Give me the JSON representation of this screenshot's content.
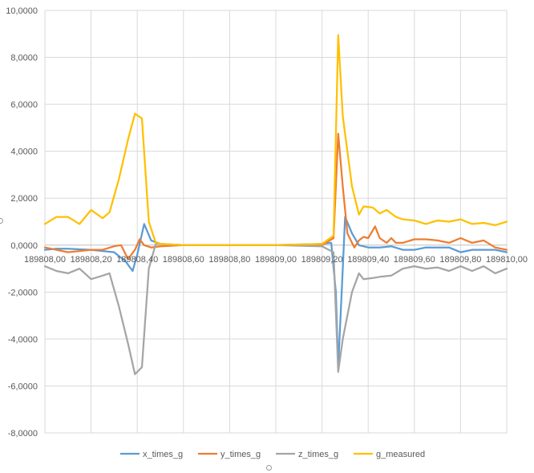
{
  "chart_data": {
    "type": "line",
    "title": "",
    "xlabel": "",
    "ylabel": "",
    "xlim": [
      189808.0,
      189810.0
    ],
    "ylim": [
      -8,
      10
    ],
    "x_ticks": [
      189808.0,
      189808.2,
      189808.4,
      189808.6,
      189808.8,
      189809.0,
      189809.2,
      189809.4,
      189809.6,
      189809.8,
      189810.0
    ],
    "x_tick_labels": [
      "189808,00",
      "189808,20",
      "189808,40",
      "189808,60",
      "189808,80",
      "189809,00",
      "189809,20",
      "189809,40",
      "189809,60",
      "189809,80",
      "189810,00"
    ],
    "y_ticks": [
      -8,
      -6,
      -4,
      -2,
      0,
      2,
      4,
      6,
      8,
      10
    ],
    "y_tick_labels": [
      "-8,0000",
      "-6,0000",
      "-4,0000",
      "-2,0000",
      "0,0000",
      "2,0000",
      "4,0000",
      "6,0000",
      "8,0000",
      "10,0000"
    ],
    "grid": "vertical and horizontal",
    "legend_position": "bottom",
    "series": [
      {
        "name": "x_times_g",
        "color": "#5B9BD5",
        "points": [
          [
            189808.0,
            -0.2
          ],
          [
            189808.05,
            -0.15
          ],
          [
            189808.1,
            -0.15
          ],
          [
            189808.15,
            -0.18
          ],
          [
            189808.2,
            -0.2
          ],
          [
            189808.25,
            -0.25
          ],
          [
            189808.3,
            -0.3
          ],
          [
            189808.35,
            -0.7
          ],
          [
            189808.38,
            -1.1
          ],
          [
            189808.4,
            -0.4
          ],
          [
            189808.43,
            0.9
          ],
          [
            189808.46,
            0.2
          ],
          [
            189808.5,
            0.05
          ],
          [
            189808.6,
            0.0
          ],
          [
            189808.8,
            0.0
          ],
          [
            189809.0,
            0.0
          ],
          [
            189809.2,
            0.05
          ],
          [
            189809.24,
            0.1
          ],
          [
            189809.26,
            -2.0
          ],
          [
            189809.27,
            -5.2
          ],
          [
            189809.29,
            -1.0
          ],
          [
            189809.3,
            1.2
          ],
          [
            189809.33,
            0.5
          ],
          [
            189809.36,
            0.0
          ],
          [
            189809.4,
            -0.1
          ],
          [
            189809.45,
            -0.1
          ],
          [
            189809.5,
            -0.05
          ],
          [
            189809.55,
            -0.2
          ],
          [
            189809.6,
            -0.2
          ],
          [
            189809.65,
            -0.1
          ],
          [
            189809.7,
            -0.1
          ],
          [
            189809.75,
            -0.1
          ],
          [
            189809.8,
            -0.3
          ],
          [
            189809.85,
            -0.2
          ],
          [
            189809.9,
            -0.2
          ],
          [
            189809.95,
            -0.2
          ],
          [
            189810.0,
            -0.3
          ]
        ]
      },
      {
        "name": "y_times_g",
        "color": "#ED7D31",
        "points": [
          [
            189808.0,
            -0.1
          ],
          [
            189808.05,
            -0.2
          ],
          [
            189808.1,
            -0.3
          ],
          [
            189808.15,
            -0.25
          ],
          [
            189808.2,
            -0.2
          ],
          [
            189808.25,
            -0.2
          ],
          [
            189808.3,
            -0.05
          ],
          [
            189808.33,
            0.0
          ],
          [
            189808.36,
            -0.6
          ],
          [
            189808.39,
            -0.2
          ],
          [
            189808.41,
            0.25
          ],
          [
            189808.43,
            0.0
          ],
          [
            189808.46,
            -0.1
          ],
          [
            189808.5,
            -0.05
          ],
          [
            189808.6,
            0.0
          ],
          [
            189808.8,
            0.0
          ],
          [
            189809.0,
            0.0
          ],
          [
            189809.2,
            0.0
          ],
          [
            189809.25,
            0.3
          ],
          [
            189809.27,
            4.75
          ],
          [
            189809.29,
            2.5
          ],
          [
            189809.31,
            0.5
          ],
          [
            189809.34,
            -0.1
          ],
          [
            189809.36,
            0.2
          ],
          [
            189809.38,
            0.35
          ],
          [
            189809.4,
            0.3
          ],
          [
            189809.43,
            0.8
          ],
          [
            189809.45,
            0.3
          ],
          [
            189809.48,
            0.1
          ],
          [
            189809.5,
            0.3
          ],
          [
            189809.52,
            0.1
          ],
          [
            189809.55,
            0.1
          ],
          [
            189809.6,
            0.25
          ],
          [
            189809.65,
            0.25
          ],
          [
            189809.7,
            0.2
          ],
          [
            189809.75,
            0.1
          ],
          [
            189809.8,
            0.3
          ],
          [
            189809.85,
            0.1
          ],
          [
            189809.9,
            0.2
          ],
          [
            189809.95,
            -0.1
          ],
          [
            189810.0,
            -0.2
          ]
        ]
      },
      {
        "name": "z_times_g",
        "color": "#A5A5A5",
        "points": [
          [
            189808.0,
            -0.9
          ],
          [
            189808.05,
            -1.1
          ],
          [
            189808.1,
            -1.2
          ],
          [
            189808.15,
            -1.0
          ],
          [
            189808.2,
            -1.45
          ],
          [
            189808.25,
            -1.3
          ],
          [
            189808.28,
            -1.2
          ],
          [
            189808.32,
            -2.6
          ],
          [
            189808.36,
            -4.2
          ],
          [
            189808.39,
            -5.5
          ],
          [
            189808.42,
            -5.2
          ],
          [
            189808.45,
            -1.0
          ],
          [
            189808.48,
            0.05
          ],
          [
            189808.5,
            0.05
          ],
          [
            189808.6,
            0.0
          ],
          [
            189808.8,
            0.0
          ],
          [
            189809.0,
            0.0
          ],
          [
            189809.2,
            -0.05
          ],
          [
            189809.25,
            -0.3
          ],
          [
            189809.27,
            -5.4
          ],
          [
            189809.29,
            -4.0
          ],
          [
            189809.33,
            -2.0
          ],
          [
            189809.36,
            -1.2
          ],
          [
            189809.38,
            -1.45
          ],
          [
            189809.42,
            -1.4
          ],
          [
            189809.45,
            -1.35
          ],
          [
            189809.5,
            -1.3
          ],
          [
            189809.55,
            -1.0
          ],
          [
            189809.6,
            -0.9
          ],
          [
            189809.65,
            -1.0
          ],
          [
            189809.7,
            -0.95
          ],
          [
            189809.75,
            -1.1
          ],
          [
            189809.8,
            -0.9
          ],
          [
            189809.85,
            -1.1
          ],
          [
            189809.9,
            -0.9
          ],
          [
            189809.95,
            -1.2
          ],
          [
            189810.0,
            -1.0
          ]
        ]
      },
      {
        "name": "g_measured",
        "color": "#FFC000",
        "points": [
          [
            189808.0,
            0.9
          ],
          [
            189808.05,
            1.2
          ],
          [
            189808.1,
            1.2
          ],
          [
            189808.15,
            0.9
          ],
          [
            189808.2,
            1.5
          ],
          [
            189808.25,
            1.15
          ],
          [
            189808.28,
            1.4
          ],
          [
            189808.32,
            2.8
          ],
          [
            189808.36,
            4.5
          ],
          [
            189808.39,
            5.6
          ],
          [
            189808.42,
            5.4
          ],
          [
            189808.45,
            1.0
          ],
          [
            189808.48,
            0.1
          ],
          [
            189808.5,
            0.05
          ],
          [
            189808.6,
            0.0
          ],
          [
            189808.8,
            0.0
          ],
          [
            189809.0,
            0.0
          ],
          [
            189809.2,
            0.05
          ],
          [
            189809.25,
            0.4
          ],
          [
            189809.27,
            8.95
          ],
          [
            189809.29,
            5.5
          ],
          [
            189809.33,
            2.5
          ],
          [
            189809.36,
            1.3
          ],
          [
            189809.38,
            1.65
          ],
          [
            189809.42,
            1.6
          ],
          [
            189809.45,
            1.35
          ],
          [
            189809.48,
            1.5
          ],
          [
            189809.52,
            1.2
          ],
          [
            189809.55,
            1.1
          ],
          [
            189809.6,
            1.05
          ],
          [
            189809.65,
            0.9
          ],
          [
            189809.7,
            1.05
          ],
          [
            189809.75,
            1.0
          ],
          [
            189809.8,
            1.1
          ],
          [
            189809.85,
            0.9
          ],
          [
            189809.9,
            0.95
          ],
          [
            189809.95,
            0.85
          ],
          [
            189810.0,
            1.0
          ]
        ]
      }
    ]
  }
}
